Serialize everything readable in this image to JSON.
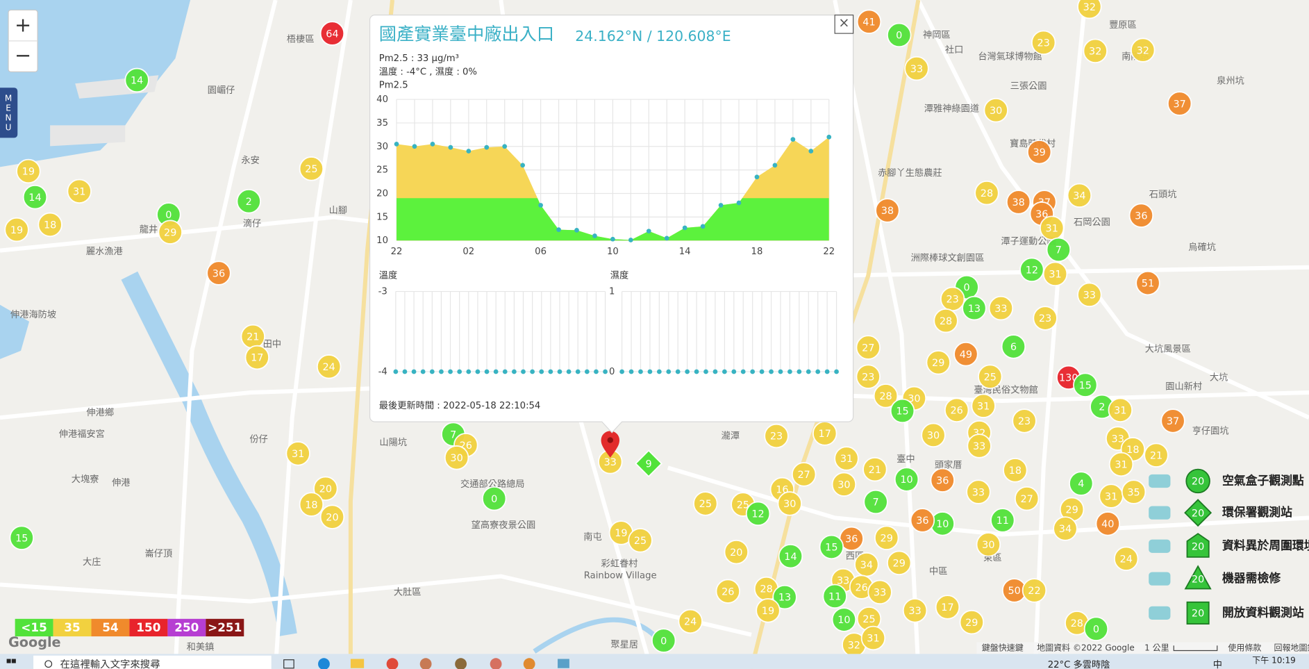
{
  "chart_data": [
    {
      "type": "area",
      "title": "Pm2.5",
      "categories": [
        "22",
        null,
        null,
        null,
        "02",
        null,
        null,
        null,
        "06",
        null,
        null,
        null,
        "10",
        null,
        null,
        null,
        "14",
        null,
        null,
        null,
        "18",
        null,
        null,
        null,
        "22"
      ],
      "values": [
        30.5,
        30,
        30.5,
        29.8,
        29,
        29.8,
        30,
        26,
        17.5,
        12.3,
        12.2,
        11,
        10.3,
        10.1,
        12,
        10.5,
        12.7,
        13,
        17.5,
        18,
        23.5,
        26,
        31.5,
        29,
        32
      ],
      "ylim": [
        10,
        40
      ],
      "yticks": [
        10,
        15,
        20,
        25,
        30,
        35,
        40
      ],
      "grid": true,
      "color_high": "#f6d657",
      "color_low": "#5cf23d",
      "color_split": 19,
      "point_color": "#38b3c2"
    },
    {
      "type": "line",
      "title": "溫度",
      "values": [
        -4,
        -4,
        -4,
        -4,
        -4,
        -4,
        -4,
        -4,
        -4,
        -4,
        -4,
        -4,
        -4,
        -4,
        -4,
        -4,
        -4,
        -4,
        -4,
        -4,
        -4,
        -4,
        -4,
        -4
      ],
      "ylim": [
        -4,
        -3
      ],
      "yticks": [
        -4,
        -3
      ],
      "grid": true,
      "point_color": "#38b3c2"
    },
    {
      "type": "line",
      "title": "濕度",
      "values": [
        0,
        0,
        0,
        0,
        0,
        0,
        0,
        0,
        0,
        0,
        0,
        0,
        0,
        0,
        0,
        0,
        0,
        0,
        0,
        0,
        0,
        0,
        0,
        0
      ],
      "ylim": [
        0,
        1
      ],
      "yticks": [
        0,
        1
      ],
      "grid": true,
      "point_color": "#38b3c2"
    }
  ],
  "popup": {
    "title": "國產實業臺中廠出入口",
    "coords": "24.162°N / 120.608°E",
    "pm_line": "Pm2.5 : 33 μg/m³",
    "weather_line": "溫度 : -4°C , 濕度 : 0%",
    "updated": "最後更新時間 : 2022-05-18 22:10:54",
    "close": "×"
  },
  "map": {
    "zoom_in": "+",
    "zoom_out": "−",
    "menu": "MENU",
    "markers": [
      64,
      14,
      41,
      0,
      23,
      32,
      32,
      32,
      33,
      37,
      30,
      39,
      19,
      14,
      31,
      25,
      2,
      0,
      29,
      19,
      18,
      36,
      38,
      28,
      38,
      37,
      36,
      34,
      31,
      7,
      12,
      31,
      36,
      33,
      51,
      0,
      23,
      13,
      33,
      28,
      23,
      6,
      49,
      29,
      130,
      15,
      27,
      23,
      25,
      21,
      17,
      24,
      28,
      30,
      15,
      26,
      31,
      23,
      2,
      31,
      37,
      33,
      18,
      21,
      31,
      7,
      26,
      30,
      31,
      23,
      17,
      30,
      32,
      33,
      31,
      18,
      21,
      27,
      30,
      36,
      10,
      4,
      31,
      35,
      20,
      18,
      20,
      0,
      15,
      16,
      25,
      25,
      12,
      30,
      7,
      33,
      27,
      11,
      29,
      40,
      10,
      36,
      34,
      36,
      29,
      15,
      14,
      20,
      19,
      25,
      34,
      29,
      30,
      24,
      26,
      28,
      13,
      33,
      26,
      33,
      11,
      50,
      22,
      33,
      17,
      19,
      25,
      10,
      29,
      24,
      28,
      0,
      32,
      31,
      0,
      33
    ],
    "stations": [
      9
    ],
    "place_names": [
      "梧棲區",
      "神岡區",
      "社口",
      "台灣氣球博物館",
      "豐原區",
      "南陽路",
      "三張公園",
      "泉州坑",
      "潭雅神綠園道",
      "寶島時代村",
      "赤腳丫生態農莊",
      "石岡公園",
      "石頭坑",
      "潭子運動公園",
      "洲際棒球文創園區",
      "烏確坑",
      "大坑風景區",
      "大坑",
      "園山新村",
      "亨仔園坑",
      "臺灣民俗文物館",
      "頭家厝",
      "臺中",
      "西區",
      "中區",
      "東區",
      "彩虹眷村",
      "Rainbow Village",
      "南屯",
      "望高寮夜景公園",
      "交通部公路總局",
      "大肚區",
      "山陽坑",
      "份仔",
      "田中",
      "龍井",
      "麗水漁港",
      "伸港海防坡",
      "伸港鄉",
      "伸港福安宮",
      "大塊寮",
      "伸港",
      "園嵋仔",
      "永安",
      "滴仔",
      "山腳",
      "大庄",
      "崙仔頂",
      "和美鎮",
      "聚星居",
      "瀧潭"
    ]
  },
  "aqi_legend": [
    {
      "value": 15,
      "label": "<15",
      "color": "#52e23a"
    },
    {
      "value": 35,
      "label": "35",
      "color": "#f2d13f"
    },
    {
      "value": 54,
      "label": "54",
      "color": "#f08a2c"
    },
    {
      "value": 150,
      "label": "150",
      "color": "#e8242c"
    },
    {
      "value": 250,
      "label": "250",
      "color": "#b63ed2"
    },
    {
      "value": 251,
      "label": ">251",
      "color": "#8a1616"
    }
  ],
  "station_legend": [
    {
      "badge": "20",
      "label": "空氣盒子觀測點"
    },
    {
      "badge": "20",
      "label": "環保署觀測站"
    },
    {
      "badge": "20",
      "label": "資料異於周圍環境"
    },
    {
      "badge": "20",
      "label": "機器需檢修"
    },
    {
      "badge": "20",
      "label": "開放資料觀測站"
    }
  ],
  "attribution": {
    "logo": "Google",
    "shortcuts": "鍵盤快速鍵",
    "map_data": "地圖資料 ©2022 Google",
    "scale": "1 公里",
    "terms": "使用條款",
    "report": "回報地圖錯誤"
  },
  "taskbar": {
    "search": "在這裡輸入文字來搜尋",
    "weather": "22°C 多雲時陰",
    "ime": "中",
    "time": "下午 10:19"
  }
}
